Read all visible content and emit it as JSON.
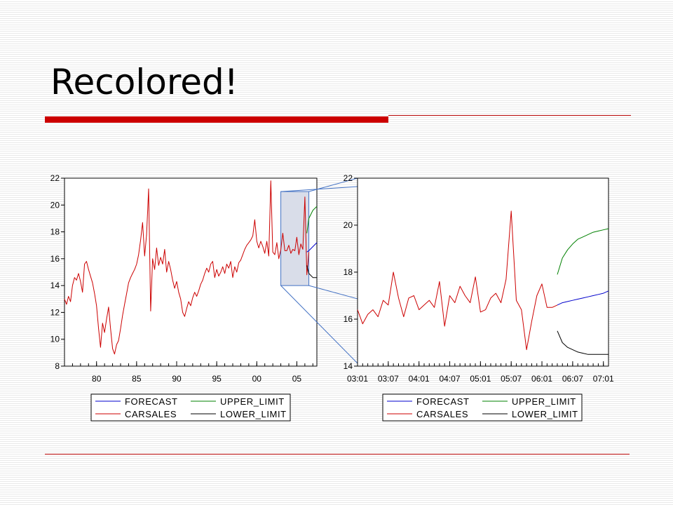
{
  "slide": {
    "title": "Recolored!"
  },
  "colors": {
    "accent": "#cc0000",
    "forecast": "#0000cc",
    "carsales": "#cc0000",
    "upper_limit": "#008000",
    "lower_limit": "#000000",
    "zoom_box_fill": "#d9dde9",
    "zoom_connector": "#4472c4"
  },
  "chart_data": [
    {
      "type": "line",
      "title": "",
      "xlabel": "",
      "ylabel": "",
      "xlim": [
        1976,
        2007.5
      ],
      "ylim": [
        8,
        22
      ],
      "xticks": [
        1980,
        1985,
        1990,
        1995,
        2000,
        2005
      ],
      "xtick_labels": [
        "80",
        "85",
        "90",
        "95",
        "00",
        "05"
      ],
      "yticks": [
        8,
        10,
        12,
        14,
        16,
        18,
        20,
        22
      ],
      "ytick_labels": [
        "8",
        "10",
        "12",
        "14",
        "16",
        "18",
        "20",
        "22"
      ],
      "zoom_region": {
        "x": [
          2003.0,
          2006.5
        ],
        "y": [
          14,
          21
        ]
      },
      "series": [
        {
          "name": "CARSALES",
          "color": "#cc0000",
          "x": [
            1976.0,
            1976.25,
            1976.5,
            1976.75,
            1977.0,
            1977.25,
            1977.5,
            1977.75,
            1978.0,
            1978.25,
            1978.5,
            1978.75,
            1979.0,
            1979.25,
            1979.5,
            1979.75,
            1980.0,
            1980.25,
            1980.5,
            1980.75,
            1981.0,
            1981.25,
            1981.5,
            1981.75,
            1982.0,
            1982.25,
            1982.5,
            1982.75,
            1983.0,
            1983.25,
            1983.5,
            1983.75,
            1984.0,
            1984.25,
            1984.5,
            1984.75,
            1985.0,
            1985.25,
            1985.5,
            1985.75,
            1986.0,
            1986.25,
            1986.5,
            1986.75,
            1987.0,
            1987.25,
            1987.5,
            1987.75,
            1988.0,
            1988.25,
            1988.5,
            1988.75,
            1989.0,
            1989.25,
            1989.5,
            1989.75,
            1990.0,
            1990.25,
            1990.5,
            1990.75,
            1991.0,
            1991.25,
            1991.5,
            1991.75,
            1992.0,
            1992.25,
            1992.5,
            1992.75,
            1993.0,
            1993.25,
            1993.5,
            1993.75,
            1994.0,
            1994.25,
            1994.5,
            1994.75,
            1995.0,
            1995.25,
            1995.5,
            1995.75,
            1996.0,
            1996.25,
            1996.5,
            1996.75,
            1997.0,
            1997.25,
            1997.5,
            1997.75,
            1998.0,
            1998.25,
            1998.5,
            1998.75,
            1999.0,
            1999.25,
            1999.5,
            1999.75,
            2000.0,
            2000.25,
            2000.5,
            2000.75,
            2001.0,
            2001.25,
            2001.5,
            2001.75,
            2002.0,
            2002.25,
            2002.5,
            2002.75,
            2003.0,
            2003.25,
            2003.5,
            2003.75,
            2004.0,
            2004.25,
            2004.5,
            2004.75,
            2005.0,
            2005.25,
            2005.5,
            2005.75,
            2006.0,
            2006.25,
            2006.5
          ],
          "y": [
            13.0,
            12.6,
            13.2,
            12.8,
            14.0,
            14.6,
            14.4,
            14.9,
            14.3,
            13.5,
            15.6,
            15.8,
            15.2,
            14.7,
            14.2,
            13.4,
            12.5,
            10.8,
            9.4,
            11.2,
            10.5,
            11.5,
            12.4,
            10.8,
            9.3,
            8.9,
            9.6,
            9.9,
            10.8,
            11.8,
            12.6,
            13.4,
            14.2,
            14.6,
            14.9,
            15.2,
            15.6,
            16.3,
            17.4,
            18.7,
            16.2,
            17.8,
            21.2,
            12.1,
            16.0,
            15.2,
            16.8,
            15.5,
            16.1,
            15.6,
            16.7,
            15.0,
            15.8,
            15.2,
            14.4,
            13.8,
            14.3,
            13.5,
            13.0,
            12.0,
            11.7,
            12.3,
            12.8,
            12.5,
            13.1,
            13.5,
            13.2,
            13.6,
            14.1,
            14.4,
            14.9,
            15.3,
            15.0,
            15.6,
            15.8,
            14.6,
            15.2,
            14.7,
            15.0,
            15.4,
            14.9,
            15.6,
            15.3,
            15.8,
            14.6,
            15.4,
            15.0,
            15.7,
            15.9,
            16.3,
            16.7,
            17.0,
            17.2,
            17.4,
            17.7,
            18.9,
            17.3,
            16.8,
            17.3,
            16.9,
            16.4,
            17.3,
            16.2,
            21.8,
            16.5,
            16.3,
            17.2,
            16.0,
            16.7,
            17.9,
            16.6,
            16.6,
            17.0,
            16.4,
            16.7,
            16.6,
            17.6,
            16.3,
            17.1,
            16.7,
            20.6,
            14.8,
            16.5
          ]
        },
        {
          "name": "FORECAST",
          "color": "#0000cc",
          "x": [
            2006.25,
            2006.5,
            2007.0,
            2007.5
          ],
          "y": [
            16.5,
            16.6,
            16.9,
            17.2
          ]
        },
        {
          "name": "UPPER_LIMIT",
          "color": "#008000",
          "x": [
            2006.25,
            2006.5,
            2007.0,
            2007.5
          ],
          "y": [
            17.9,
            19.0,
            19.6,
            19.9
          ]
        },
        {
          "name": "LOWER_LIMIT",
          "color": "#000000",
          "x": [
            2006.25,
            2006.5,
            2007.0,
            2007.5
          ],
          "y": [
            15.5,
            14.9,
            14.6,
            14.6
          ]
        }
      ],
      "legend": {
        "placement": "bottom",
        "entries": [
          {
            "label": "FORECAST",
            "color": "#0000cc"
          },
          {
            "label": "UPPER_LIMIT",
            "color": "#008000"
          },
          {
            "label": "CARSALES",
            "color": "#cc0000"
          },
          {
            "label": "LOWER_LIMIT",
            "color": "#000000"
          }
        ]
      },
      "grid": false
    },
    {
      "type": "line",
      "title": "",
      "xlabel": "",
      "ylabel": "",
      "xlim": [
        2003.0,
        2007.083
      ],
      "ylim": [
        14,
        22
      ],
      "xticks": [
        2003.0,
        2003.5,
        2004.0,
        2004.5,
        2005.0,
        2005.5,
        2006.0,
        2006.5,
        2007.0
      ],
      "xtick_labels": [
        "03:01",
        "03:07",
        "04:01",
        "04:07",
        "05:01",
        "05:07",
        "06:01",
        "06:07",
        "07:01"
      ],
      "yticks": [
        14,
        16,
        18,
        20,
        22
      ],
      "ytick_labels": [
        "14",
        "16",
        "18",
        "20",
        "22"
      ],
      "series": [
        {
          "name": "CARSALES",
          "color": "#cc0000",
          "x": [
            2003.0,
            2003.083,
            2003.167,
            2003.25,
            2003.333,
            2003.417,
            2003.5,
            2003.583,
            2003.667,
            2003.75,
            2003.833,
            2003.917,
            2004.0,
            2004.083,
            2004.167,
            2004.25,
            2004.333,
            2004.417,
            2004.5,
            2004.583,
            2004.667,
            2004.75,
            2004.833,
            2004.917,
            2005.0,
            2005.083,
            2005.167,
            2005.25,
            2005.333,
            2005.417,
            2005.5,
            2005.583,
            2005.667,
            2005.75,
            2005.833,
            2005.917,
            2006.0,
            2006.083,
            2006.167,
            2006.25
          ],
          "y": [
            16.4,
            15.8,
            16.2,
            16.4,
            16.1,
            16.8,
            16.6,
            18.0,
            16.9,
            16.1,
            16.9,
            17.0,
            16.4,
            16.6,
            16.8,
            16.5,
            17.6,
            15.7,
            17.0,
            16.7,
            17.4,
            17.0,
            16.7,
            17.8,
            16.3,
            16.4,
            16.9,
            17.1,
            16.7,
            17.7,
            20.6,
            16.8,
            16.4,
            14.7,
            15.9,
            17.0,
            17.5,
            16.5,
            16.5,
            16.6
          ]
        },
        {
          "name": "FORECAST",
          "color": "#0000cc",
          "x": [
            2006.25,
            2006.333,
            2006.417,
            2006.5,
            2006.583,
            2006.667,
            2006.75,
            2006.833,
            2006.917,
            2007.0,
            2007.083
          ],
          "y": [
            16.6,
            16.7,
            16.75,
            16.8,
            16.85,
            16.9,
            16.95,
            17.0,
            17.05,
            17.1,
            17.2
          ]
        },
        {
          "name": "UPPER_LIMIT",
          "color": "#008000",
          "x": [
            2006.25,
            2006.333,
            2006.417,
            2006.5,
            2006.583,
            2006.667,
            2006.75,
            2006.833,
            2006.917,
            2007.0,
            2007.083
          ],
          "y": [
            17.9,
            18.6,
            18.95,
            19.2,
            19.4,
            19.5,
            19.6,
            19.7,
            19.75,
            19.8,
            19.85
          ]
        },
        {
          "name": "LOWER_LIMIT",
          "color": "#000000",
          "x": [
            2006.25,
            2006.333,
            2006.417,
            2006.5,
            2006.583,
            2006.667,
            2006.75,
            2006.833,
            2006.917,
            2007.0,
            2007.083
          ],
          "y": [
            15.5,
            15.0,
            14.8,
            14.7,
            14.6,
            14.55,
            14.5,
            14.5,
            14.5,
            14.5,
            14.5
          ]
        }
      ],
      "legend": {
        "placement": "bottom",
        "entries": [
          {
            "label": "FORECAST",
            "color": "#0000cc"
          },
          {
            "label": "UPPER_LIMIT",
            "color": "#008000"
          },
          {
            "label": "CARSALES",
            "color": "#cc0000"
          },
          {
            "label": "LOWER_LIMIT",
            "color": "#000000"
          }
        ]
      },
      "grid": false
    }
  ]
}
